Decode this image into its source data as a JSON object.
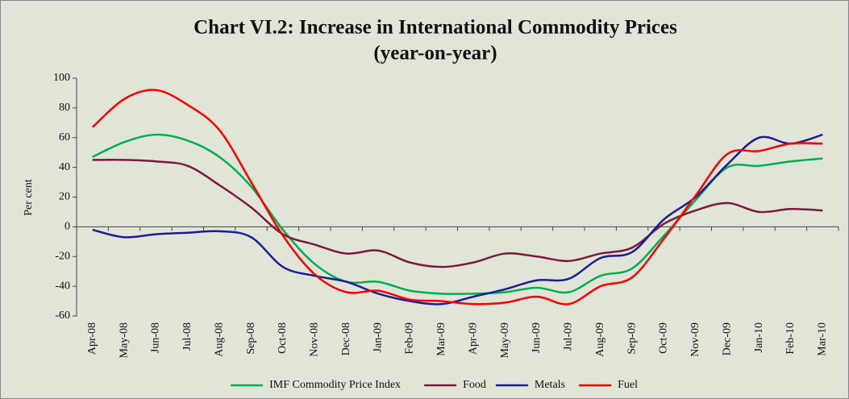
{
  "chart_data": {
    "type": "line",
    "title": "Chart VI.2: Increase in International Commodity Prices",
    "subtitle": "(year-on-year)",
    "y_label": "Per cent",
    "categories": [
      "Apr-08",
      "May-08",
      "Jun-08",
      "Jul-08",
      "Aug-08",
      "Sep-08",
      "Oct-08",
      "Nov-08",
      "Dec-08",
      "Jan-09",
      "Feb-09",
      "Mar-09",
      "Apr-09",
      "May-09",
      "Jun-09",
      "Jul-09",
      "Aug-09",
      "Sep-09",
      "Oct-09",
      "Nov-09",
      "Dec-09",
      "Jan-10",
      "Feb-10",
      "Mar-10"
    ],
    "series": [
      {
        "name": "IMF Commodity Price Index",
        "color": "#00b050",
        "values": [
          47,
          57,
          62,
          58,
          47,
          27,
          -2,
          -25,
          -37,
          -37,
          -43,
          -45,
          -45,
          -44,
          -41,
          -44,
          -33,
          -28,
          -6,
          18,
          40,
          41,
          44,
          46
        ]
      },
      {
        "name": "Food",
        "color": "#7b1a3a",
        "values": [
          45,
          45,
          44,
          41,
          28,
          13,
          -5,
          -12,
          -18,
          -16,
          -24,
          -27,
          -24,
          -18,
          -20,
          -23,
          -18,
          -14,
          2,
          11,
          16,
          10,
          12,
          11
        ]
      },
      {
        "name": "Metals",
        "color": "#1c1c96",
        "values": [
          -2,
          -7,
          -5,
          -4,
          -3,
          -7,
          -27,
          -33,
          -37,
          -45,
          -50,
          -52,
          -47,
          -42,
          -36,
          -35,
          -21,
          -17,
          5,
          20,
          42,
          60,
          56,
          62
        ]
      },
      {
        "name": "Fuel",
        "color": "#ff0000",
        "values": [
          67,
          86,
          92,
          82,
          65,
          30,
          -6,
          -32,
          -44,
          -43,
          -49,
          -50,
          -52,
          -51,
          -47,
          -52,
          -40,
          -34,
          -8,
          21,
          49,
          51,
          56,
          56
        ]
      }
    ],
    "ylim": [
      -60,
      100
    ],
    "yticks": [
      -60,
      -40,
      -20,
      0,
      20,
      40,
      60,
      80,
      100
    ],
    "legend": "bottom"
  }
}
